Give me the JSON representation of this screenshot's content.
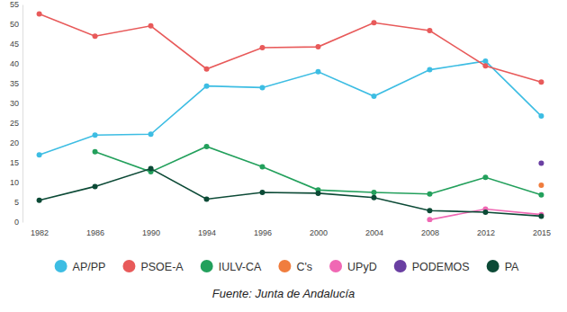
{
  "chart_data": {
    "type": "line",
    "categories": [
      "1982",
      "1986",
      "1990",
      "1994",
      "1996",
      "2000",
      "2004",
      "2008",
      "2012",
      "2015"
    ],
    "series": [
      {
        "name": "AP/PP",
        "color": "#3dbde3",
        "values": [
          17.0,
          22.0,
          22.2,
          34.4,
          34.0,
          38.0,
          31.8,
          38.5,
          40.7,
          26.8
        ]
      },
      {
        "name": "PSOE-A",
        "color": "#e85a5a",
        "values": [
          52.6,
          47.0,
          49.6,
          38.7,
          44.1,
          44.3,
          50.4,
          48.4,
          39.5,
          35.4
        ]
      },
      {
        "name": "IULV-CA",
        "color": "#23a05c",
        "values": [
          null,
          17.8,
          12.7,
          19.1,
          14.0,
          8.1,
          7.5,
          7.1,
          11.3,
          6.9
        ]
      },
      {
        "name": "C's",
        "color": "#f07d3e",
        "values": [
          null,
          null,
          null,
          null,
          null,
          null,
          null,
          null,
          null,
          9.3
        ]
      },
      {
        "name": "UPyD",
        "color": "#f068b4",
        "values": [
          null,
          null,
          null,
          null,
          null,
          null,
          null,
          0.6,
          3.3,
          1.9
        ]
      },
      {
        "name": "PODEMOS",
        "color": "#6a3fa2",
        "values": [
          null,
          null,
          null,
          null,
          null,
          null,
          null,
          null,
          null,
          14.9
        ]
      },
      {
        "name": "PA",
        "color": "#0c4a36",
        "values": [
          5.5,
          9.0,
          13.5,
          5.8,
          7.5,
          7.3,
          6.2,
          2.9,
          2.5,
          1.5
        ]
      }
    ],
    "ylim": [
      0,
      55
    ],
    "yticks": [
      0,
      5,
      10,
      15,
      20,
      25,
      30,
      35,
      40,
      45,
      50,
      55
    ],
    "grid": false,
    "marker": "circle",
    "legend": "bottom",
    "source": "Fuente: Junta de Andalucía"
  }
}
